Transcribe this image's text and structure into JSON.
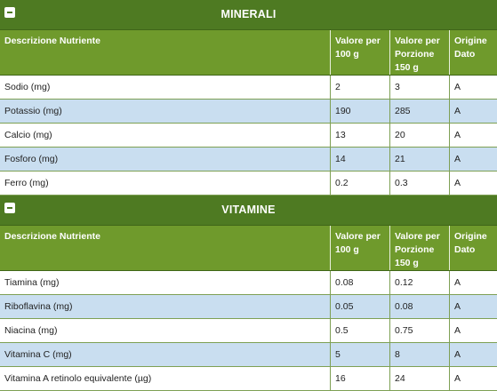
{
  "colors": {
    "section_bar": "#4e7a22",
    "header_row": "#6f9a2c",
    "alt_row": "#c9def0",
    "border": "#7ea054"
  },
  "icons": {
    "section_toggle": "minus-square-icon"
  },
  "sections": [
    {
      "title": "MINERALI",
      "headers": [
        "Descrizione Nutriente",
        "Valore per\n100 g",
        "Valore per\nPorzione\n150 g",
        "Origine\nDato"
      ],
      "rows": [
        {
          "name": "Sodio (mg)",
          "per100": "2",
          "porzione": "3",
          "origine": "A"
        },
        {
          "name": "Potassio (mg)",
          "per100": "190",
          "porzione": "285",
          "origine": "A"
        },
        {
          "name": "Calcio (mg)",
          "per100": "13",
          "porzione": "20",
          "origine": "A"
        },
        {
          "name": "Fosforo (mg)",
          "per100": "14",
          "porzione": "21",
          "origine": "A"
        },
        {
          "name": "Ferro (mg)",
          "per100": "0.2",
          "porzione": "0.3",
          "origine": "A"
        }
      ]
    },
    {
      "title": "VITAMINE",
      "headers": [
        "Descrizione Nutriente",
        "Valore per\n100 g",
        "Valore per\nPorzione\n150 g",
        "Origine\nDato"
      ],
      "rows": [
        {
          "name": "Tiamina (mg)",
          "per100": "0.08",
          "porzione": "0.12",
          "origine": "A"
        },
        {
          "name": "Riboflavina (mg)",
          "per100": "0.05",
          "porzione": "0.08",
          "origine": "A"
        },
        {
          "name": "Niacina (mg)",
          "per100": "0.5",
          "porzione": "0.75",
          "origine": "A"
        },
        {
          "name": "Vitamina C (mg)",
          "per100": "5",
          "porzione": "8",
          "origine": "A"
        },
        {
          "name": "Vitamina A retinolo equivalente (µg)",
          "per100": "16",
          "porzione": "24",
          "origine": "A"
        }
      ]
    }
  ]
}
